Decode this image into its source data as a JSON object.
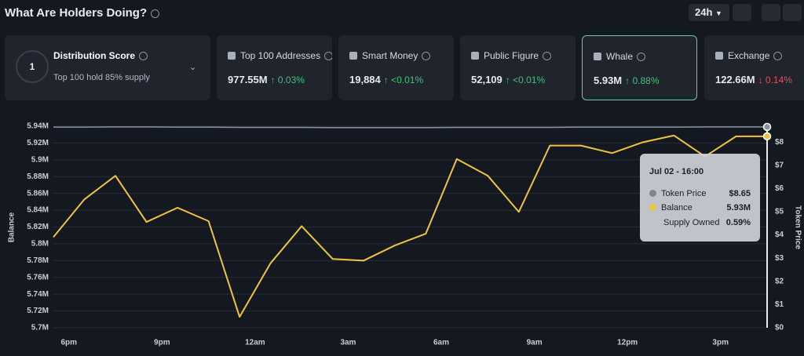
{
  "header": {
    "title": "What Are Holders Doing?",
    "timeframe": "24h"
  },
  "cards": [
    {
      "title": "Distribution Score",
      "score": "1",
      "subtitle": "Top 100 hold 85% supply"
    },
    {
      "title": "Top 100 Addresses",
      "value": "977.55M",
      "change": "↑ 0.03%"
    },
    {
      "title": "Smart Money",
      "value": "19,884",
      "change": "↑ <0.01%"
    },
    {
      "title": "Public Figure",
      "value": "52,109",
      "change": "↑ <0.01%"
    },
    {
      "title": "Whale",
      "value": "5.93M",
      "change": "↑ 0.88%"
    },
    {
      "title": "Exchange",
      "value": "122.66M",
      "change": "↓ 0.14%"
    }
  ],
  "chart_data": {
    "type": "line",
    "categories": [
      null,
      "6pm",
      null,
      null,
      "9pm",
      null,
      null,
      "12am",
      null,
      null,
      "3am",
      null,
      null,
      "6am",
      null,
      null,
      "9am",
      null,
      null,
      "12pm",
      null,
      null,
      "3pm",
      null
    ],
    "series": [
      {
        "name": "Balance",
        "color": "#f0c43c",
        "values": [
          5.808,
          5.853,
          5.881,
          5.826,
          5.843,
          5.827,
          5.713,
          5.777,
          5.821,
          5.782,
          5.78,
          5.798,
          5.812,
          5.901,
          5.881,
          5.838,
          5.917,
          5.917,
          5.908,
          5.921,
          5.929,
          5.904,
          5.928,
          5.928
        ]
      },
      {
        "name": "Token Price",
        "color": "#8a939f",
        "axis": "y2",
        "values": [
          8.64,
          8.64,
          8.65,
          8.65,
          8.64,
          8.64,
          8.63,
          8.63,
          8.63,
          8.62,
          8.62,
          8.62,
          8.62,
          8.63,
          8.63,
          8.63,
          8.63,
          8.64,
          8.64,
          8.64,
          8.64,
          8.65,
          8.65,
          8.65
        ]
      }
    ],
    "ylabel": "Balance",
    "y2label": "Token Price",
    "ylim": [
      5.7,
      5.94
    ],
    "yticks": [
      {
        "value": 5.7,
        "label": "5.7M"
      },
      {
        "value": 5.72,
        "label": "5.72M"
      },
      {
        "value": 5.74,
        "label": "5.74M"
      },
      {
        "value": 5.76,
        "label": "5.76M"
      },
      {
        "value": 5.78,
        "label": "5.78M"
      },
      {
        "value": 5.8,
        "label": "5.8M"
      },
      {
        "value": 5.82,
        "label": "5.82M"
      },
      {
        "value": 5.84,
        "label": "5.84M"
      },
      {
        "value": 5.86,
        "label": "5.86M"
      },
      {
        "value": 5.88,
        "label": "5.88M"
      },
      {
        "value": 5.9,
        "label": "5.9M"
      },
      {
        "value": 5.92,
        "label": "5.92M"
      },
      {
        "value": 5.94,
        "label": "5.94M"
      }
    ],
    "y2lim": [
      0,
      8.68
    ],
    "y2ticks": [
      {
        "value": 0,
        "label": "$0"
      },
      {
        "value": 1,
        "label": "$1"
      },
      {
        "value": 2,
        "label": "$2"
      },
      {
        "value": 3,
        "label": "$3"
      },
      {
        "value": 4,
        "label": "$4"
      },
      {
        "value": 5,
        "label": "$5"
      },
      {
        "value": 6,
        "label": "$6"
      },
      {
        "value": 7,
        "label": "$7"
      },
      {
        "value": 8,
        "label": "$8"
      }
    ],
    "grid": true,
    "tooltip": {
      "title": "Jul 02 - 16:00",
      "rows": [
        [
          "Token Price",
          "$8.65"
        ],
        [
          "Balance",
          "5.93M"
        ],
        [
          "Supply Owned",
          "0.59%"
        ]
      ]
    }
  }
}
